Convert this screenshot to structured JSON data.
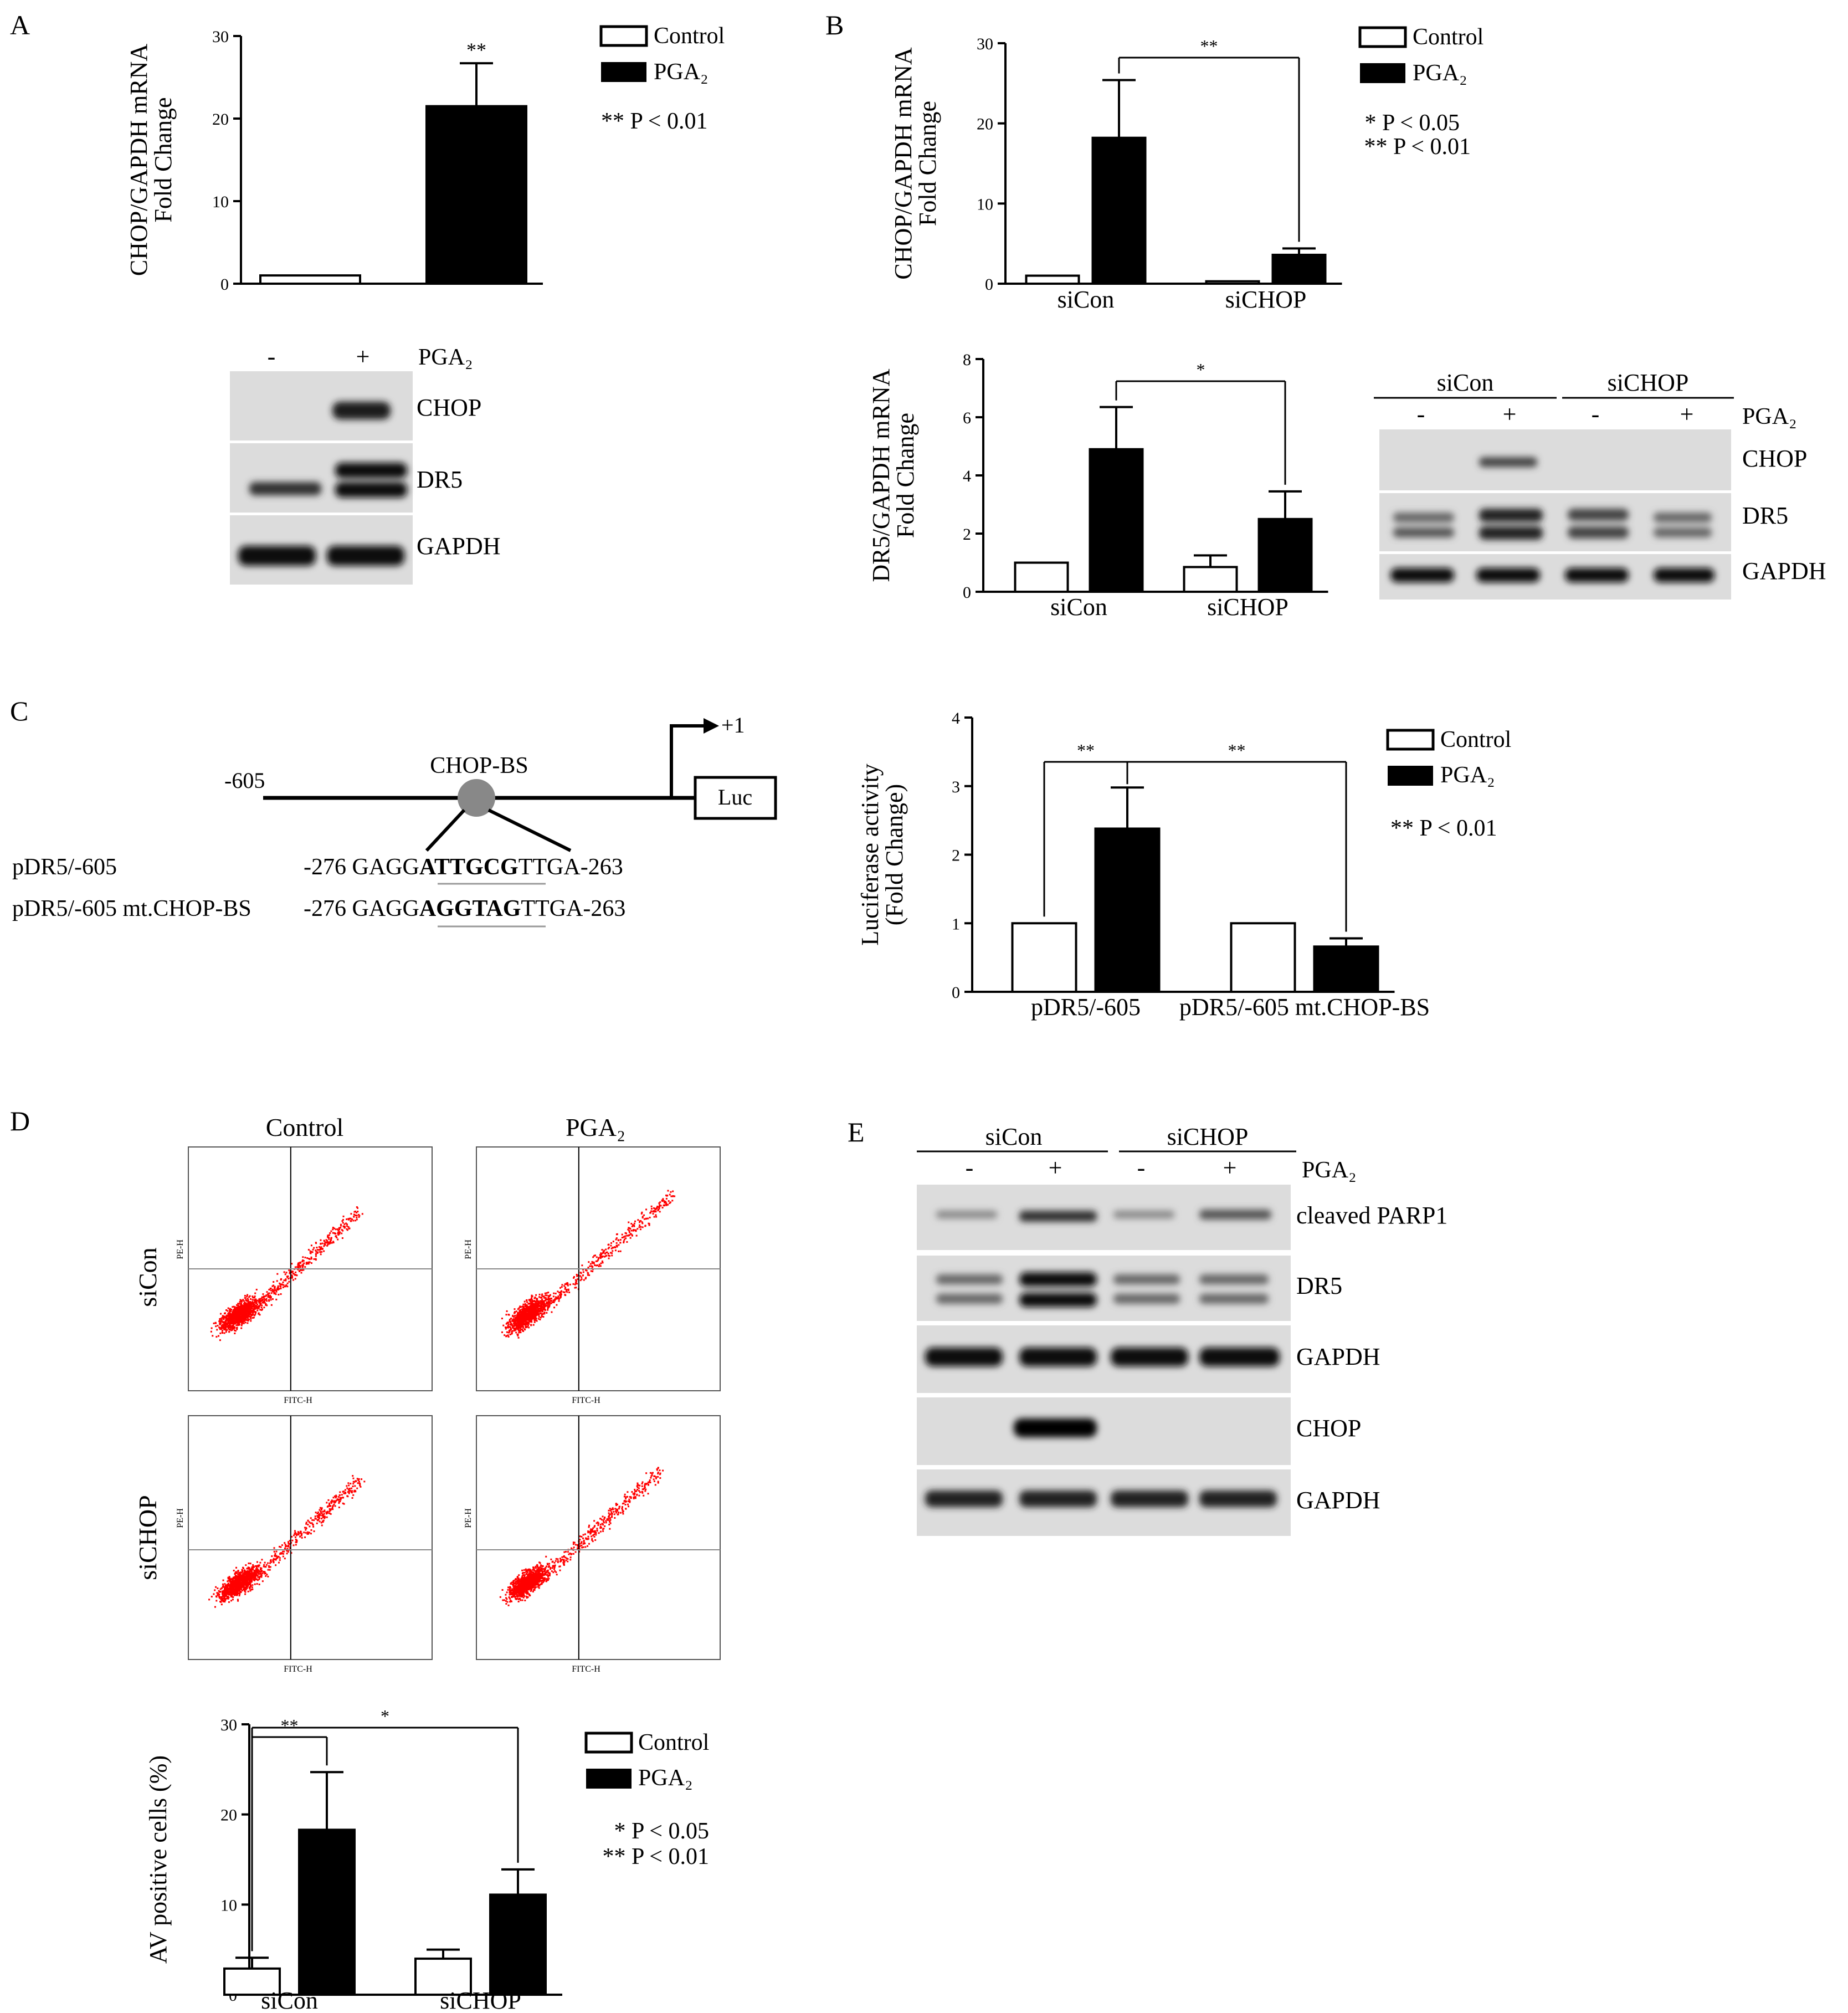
{
  "panels": {
    "A": {
      "letter": "A",
      "legend": {
        "control": "Control",
        "treat": "PGA₂",
        "note": "** P < 0.01"
      },
      "blot": {
        "lanes": [
          "-",
          "+"
        ],
        "treat": "PGA₂",
        "rows": [
          "CHOP",
          "DR5",
          "GAPDH"
        ]
      }
    },
    "B": {
      "letter": "B",
      "legend": {
        "control": "Control",
        "treat": "PGA₂",
        "note1": "* P < 0.05",
        "note2": "** P < 0.01"
      },
      "blot": {
        "groups": [
          "siCon",
          "siCHOP"
        ],
        "lanes": [
          "-",
          "+",
          "-",
          "+"
        ],
        "treat": "PGA₂",
        "rows": [
          "CHOP",
          "DR5",
          "GAPDH"
        ]
      }
    },
    "C": {
      "letter": "C",
      "diagram": {
        "start": "-605",
        "site": "CHOP-BS",
        "tss": "+1",
        "reporter": "Luc",
        "wt_name": "pDR5/-605",
        "mt_name": "pDR5/-605 mt.CHOP-BS",
        "wt_seq": {
          "pre": "-276 GAGG",
          "bold": "ATTGCG",
          "post": "TTGA-263"
        },
        "mt_seq": {
          "pre": "-276 GAGG",
          "bold": "AGGTAG",
          "post": "TTGA-263"
        }
      },
      "legend": {
        "control": "Control",
        "treat": "PGA₂",
        "note": "** P < 0.01"
      }
    },
    "D": {
      "letter": "D",
      "cols": [
        "Control",
        "PGA₂"
      ],
      "rows": [
        "siCon",
        "siCHOP"
      ],
      "flow_xlabel": "FITC-H",
      "flow_ylabel": "PE-H",
      "legend": {
        "control": "Control",
        "treat": "PGA₂",
        "note1": "* P < 0.05",
        "note2": "** P < 0.01"
      }
    },
    "E": {
      "letter": "E",
      "blot": {
        "groups": [
          "siCon",
          "siCHOP"
        ],
        "lanes": [
          "-",
          "+",
          "-",
          "+"
        ],
        "treat": "PGA₂",
        "rows": [
          "cleaved PARP1",
          "DR5",
          "GAPDH",
          "CHOP",
          "GAPDH"
        ]
      }
    }
  },
  "chart_data": [
    {
      "id": "A",
      "type": "bar",
      "ylabel": "CHOP/GAPDH mRNA\nFold Change",
      "ylim": [
        0,
        30
      ],
      "yticks": [
        0,
        10,
        20,
        30
      ],
      "categories": [
        ""
      ],
      "series": [
        {
          "name": "Control",
          "values": [
            1.0
          ],
          "errors": [
            0
          ]
        },
        {
          "name": "PGA₂",
          "values": [
            21.5
          ],
          "errors": [
            5.2
          ]
        }
      ],
      "annotations": [
        "**"
      ]
    },
    {
      "id": "B1",
      "type": "bar",
      "ylabel": "CHOP/GAPDH mRNA\nFold Change",
      "ylim": [
        0,
        30
      ],
      "yticks": [
        0,
        10,
        20,
        30
      ],
      "categories": [
        "siCon",
        "siCHOP"
      ],
      "series": [
        {
          "name": "Control",
          "values": [
            1.0,
            0.3
          ],
          "errors": [
            0,
            0
          ]
        },
        {
          "name": "PGA₂",
          "values": [
            18.2,
            3.6
          ],
          "errors": [
            7.2,
            0.8
          ]
        }
      ],
      "annotations": [
        "**"
      ]
    },
    {
      "id": "B2",
      "type": "bar",
      "ylabel": "DR5/GAPDH mRNA\nFold Change",
      "ylim": [
        0,
        8
      ],
      "yticks": [
        0,
        2,
        4,
        6,
        8
      ],
      "categories": [
        "siCon",
        "siCHOP"
      ],
      "series": [
        {
          "name": "Control",
          "values": [
            1.0,
            0.85
          ],
          "errors": [
            0,
            0.4
          ]
        },
        {
          "name": "PGA₂",
          "values": [
            4.9,
            2.5
          ],
          "errors": [
            1.45,
            0.95
          ]
        }
      ],
      "annotations": [
        "*"
      ]
    },
    {
      "id": "C",
      "type": "bar",
      "ylabel": "Luciferase activity\n(Fold Change)",
      "ylim": [
        0,
        4
      ],
      "yticks": [
        0,
        1,
        2,
        3,
        4
      ],
      "categories": [
        "pDR5/-605",
        "pDR5/-605 mt.CHOP-BS"
      ],
      "series": [
        {
          "name": "Control",
          "values": [
            1.0,
            1.0
          ],
          "errors": [
            0,
            0
          ]
        },
        {
          "name": "PGA₂",
          "values": [
            2.38,
            0.66
          ],
          "errors": [
            0.6,
            0.12
          ]
        }
      ],
      "annotations": [
        "**",
        "**"
      ]
    },
    {
      "id": "D",
      "type": "bar",
      "ylabel": "AV positive cells (%)",
      "ylim": [
        0,
        30
      ],
      "yticks": [
        0,
        10,
        20,
        30
      ],
      "categories": [
        "siCon",
        "siCHOP"
      ],
      "series": [
        {
          "name": "Control",
          "values": [
            2.9,
            4.0
          ],
          "errors": [
            1.2,
            1.0
          ]
        },
        {
          "name": "PGA₂",
          "values": [
            18.3,
            11.1
          ],
          "errors": [
            6.4,
            2.8
          ]
        }
      ],
      "annotations": [
        "**",
        "*"
      ]
    }
  ],
  "colors": {
    "bar_control": "#ffffff",
    "bar_treat": "#000000",
    "scatter": "#ff0000"
  }
}
